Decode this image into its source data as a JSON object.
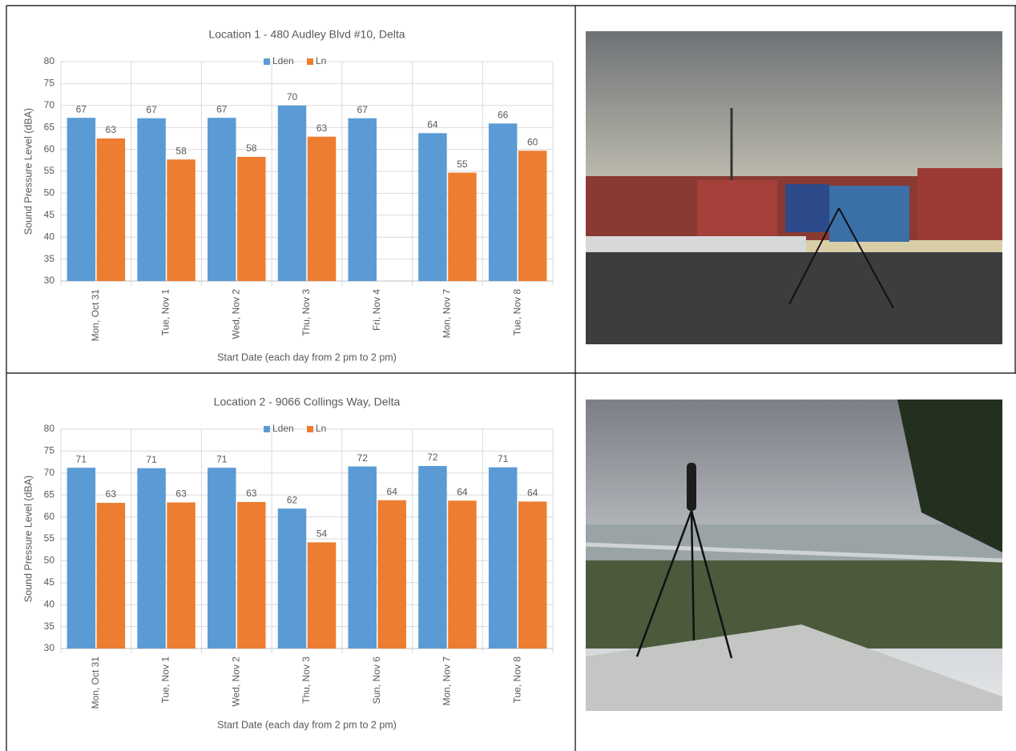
{
  "chart_data": [
    {
      "type": "bar",
      "title": "Location 1 - 480 Audley Blvd #10, Delta",
      "x_label": "Start Date (each day from 2 pm to 2 pm)",
      "y_label": "Sound Pressure Level (dBA)",
      "categories": [
        "Mon, Oct 31",
        "Tue, Nov 1",
        "Wed, Nov 2",
        "Thu, Nov 3",
        "Fri, Nov 4",
        "Mon, Nov 7",
        "Tue, Nov 8"
      ],
      "series": [
        {
          "name": "Lden",
          "color": "#5b9bd5",
          "values": [
            67.2,
            67.1,
            67.2,
            70.0,
            67.1,
            63.7,
            65.9
          ],
          "value_labels": [
            "67",
            "67",
            "67",
            "70",
            "67",
            "64",
            "66"
          ]
        },
        {
          "name": "Ln",
          "color": "#ed7d31",
          "values": [
            62.5,
            57.7,
            58.3,
            62.9,
            null,
            54.7,
            59.7
          ],
          "value_labels": [
            "63",
            "58",
            "58",
            "63",
            null,
            "55",
            "60"
          ]
        }
      ],
      "ylim": [
        30,
        80
      ],
      "yticks": [
        30,
        35,
        40,
        45,
        50,
        55,
        60,
        65,
        70,
        75,
        80
      ],
      "grid": true,
      "legend": "top"
    },
    {
      "type": "bar",
      "title": "Location 2 - 9066 Collings Way, Delta",
      "x_label": "Start Date (each day from 2 pm to 2 pm)",
      "y_label": "Sound Pressure Level (dBA)",
      "categories": [
        "Mon, Oct 31",
        "Tue, Nov 1",
        "Wed, Nov 2",
        "Thu, Nov 3",
        "Sun, Nov 6",
        "Mon, Nov 7",
        "Tue, Nov 8"
      ],
      "series": [
        {
          "name": "Lden",
          "color": "#5b9bd5",
          "values": [
            71.2,
            71.1,
            71.2,
            61.9,
            71.5,
            71.6,
            71.3
          ],
          "value_labels": [
            "71",
            "71",
            "71",
            "62",
            "72",
            "72",
            "71"
          ]
        },
        {
          "name": "Ln",
          "color": "#ed7d31",
          "values": [
            63.2,
            63.3,
            63.4,
            54.2,
            63.8,
            63.7,
            63.5
          ],
          "value_labels": [
            "63",
            "63",
            "63",
            "54",
            "64",
            "64",
            "64"
          ]
        }
      ],
      "ylim": [
        30,
        80
      ],
      "yticks": [
        30,
        35,
        40,
        45,
        50,
        55,
        60,
        65,
        70,
        75,
        80
      ],
      "grid": true,
      "legend": "top"
    }
  ]
}
